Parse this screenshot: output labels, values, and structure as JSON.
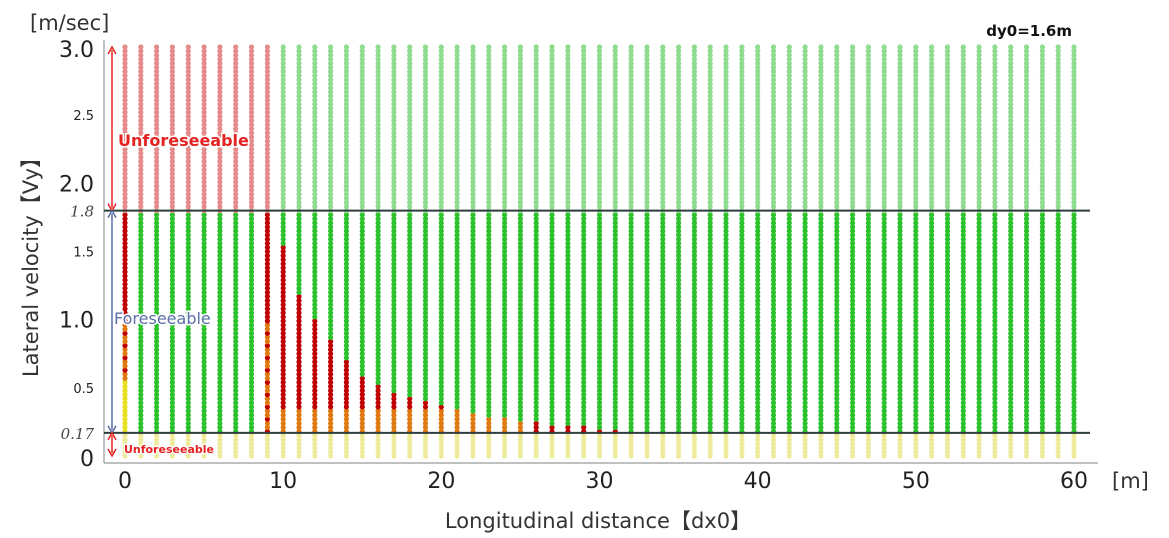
{
  "chart_data": {
    "type": "scatter",
    "xlabel": "Longitudinal distance【dx0】",
    "ylabel": "Lateral velocity【Vy】",
    "x_unit": "[m]",
    "y_unit": "[m/sec]",
    "xlim": [
      -1.5,
      61.5
    ],
    "ylim": [
      -0.1,
      3.05
    ],
    "x_ticks": [
      "0",
      "10",
      "20",
      "30",
      "40",
      "50",
      "60"
    ],
    "y_ticks_major": [
      "0",
      "1.0",
      "2.0",
      "3.0"
    ],
    "y_ticks_minor": [
      "0.5",
      "1.5",
      "2.5"
    ],
    "y_ticks_threshold": [
      "0.17",
      "1.8"
    ],
    "thresholds": [
      0.17,
      1.8
    ],
    "annotation_top_right": "dy0=1.6m",
    "regions": [
      {
        "label": "Unforeseeable",
        "y_range": [
          1.8,
          3.0
        ]
      },
      {
        "label": "Foreseeable",
        "y_range": [
          0.17,
          1.8
        ]
      },
      {
        "label": "Unforeseeable",
        "y_range": [
          0,
          0.17
        ]
      }
    ],
    "x_columns": [
      0,
      1,
      2,
      3,
      4,
      5,
      6,
      7,
      8,
      9,
      10,
      11,
      12,
      13,
      14,
      15,
      16,
      17,
      18,
      19,
      20,
      21,
      22,
      23,
      24,
      25,
      26,
      27,
      28,
      29,
      30,
      31,
      32,
      33,
      34,
      35,
      36,
      37,
      38,
      39,
      40,
      41,
      42,
      43,
      44,
      45,
      46,
      47,
      48,
      49,
      50,
      51,
      52,
      53,
      54,
      55,
      56,
      57,
      58,
      59,
      60
    ],
    "y_step": 0.03,
    "colors": {
      "green": "#2cc22c",
      "light_green": "#8fdc8f",
      "red": "#c00000",
      "light_red": "#e68b8b",
      "orange": "#e07a10",
      "yellow": "#e8e020",
      "light_yellow": "#eeec9c",
      "threshold_line": "#2f3f3f"
    },
    "red_boundary": [
      {
        "x": 0,
        "vy": 1.8
      },
      {
        "x": 9,
        "vy": 1.8
      },
      {
        "x": 10,
        "vy": 1.55
      },
      {
        "x": 11,
        "vy": 1.2
      },
      {
        "x": 12,
        "vy": 1.0
      },
      {
        "x": 13,
        "vy": 0.85
      },
      {
        "x": 14,
        "vy": 0.72
      },
      {
        "x": 15,
        "vy": 0.6
      },
      {
        "x": 16,
        "vy": 0.53
      },
      {
        "x": 17,
        "vy": 0.48
      },
      {
        "x": 18,
        "vy": 0.44
      },
      {
        "x": 19,
        "vy": 0.4
      },
      {
        "x": 20,
        "vy": 0.37
      },
      {
        "x": 21,
        "vy": 0.34
      },
      {
        "x": 22,
        "vy": 0.31
      },
      {
        "x": 23,
        "vy": 0.29
      },
      {
        "x": 24,
        "vy": 0.27
      },
      {
        "x": 25,
        "vy": 0.25
      },
      {
        "x": 26,
        "vy": 0.24
      },
      {
        "x": 27,
        "vy": 0.23
      },
      {
        "x": 28,
        "vy": 0.22
      },
      {
        "x": 29,
        "vy": 0.21
      },
      {
        "x": 30,
        "vy": 0.2
      },
      {
        "x": 31,
        "vy": 0.19
      },
      {
        "x": 32,
        "vy": 0.17
      }
    ],
    "upper_red_until_x": 9,
    "orange_upper_vy": 1.0,
    "yellow_upper_vy": 0.55
  }
}
